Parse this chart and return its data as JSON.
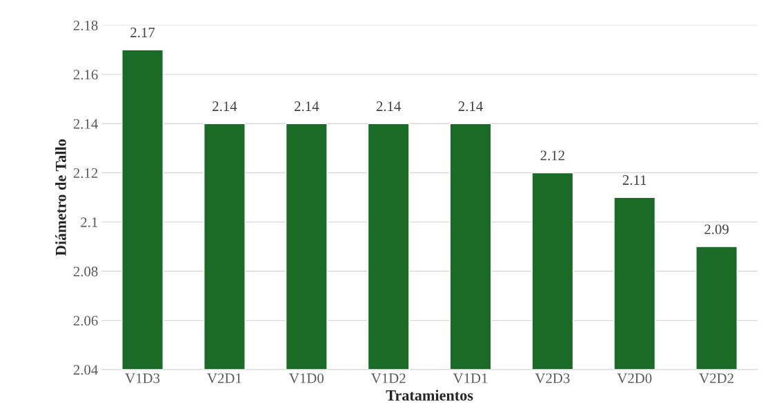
{
  "chart_data": {
    "type": "bar",
    "xlabel": "Tratamientos",
    "ylabel": "Diámetro de Tallo",
    "categories": [
      "V1D3",
      "V2D1",
      "V1D0",
      "V1D2",
      "V1D1",
      "V2D3",
      "V2D0",
      "V2D2"
    ],
    "values": [
      2.17,
      2.14,
      2.14,
      2.14,
      2.14,
      2.12,
      2.11,
      2.09
    ],
    "color": "#1a6b27",
    "ylim": [
      2.04,
      2.18
    ],
    "yticks": [
      2.04,
      2.06,
      2.08,
      2.1,
      2.12,
      2.14,
      2.16,
      2.18
    ],
    "grid": "y",
    "data_labels": true,
    "legend": false
  }
}
